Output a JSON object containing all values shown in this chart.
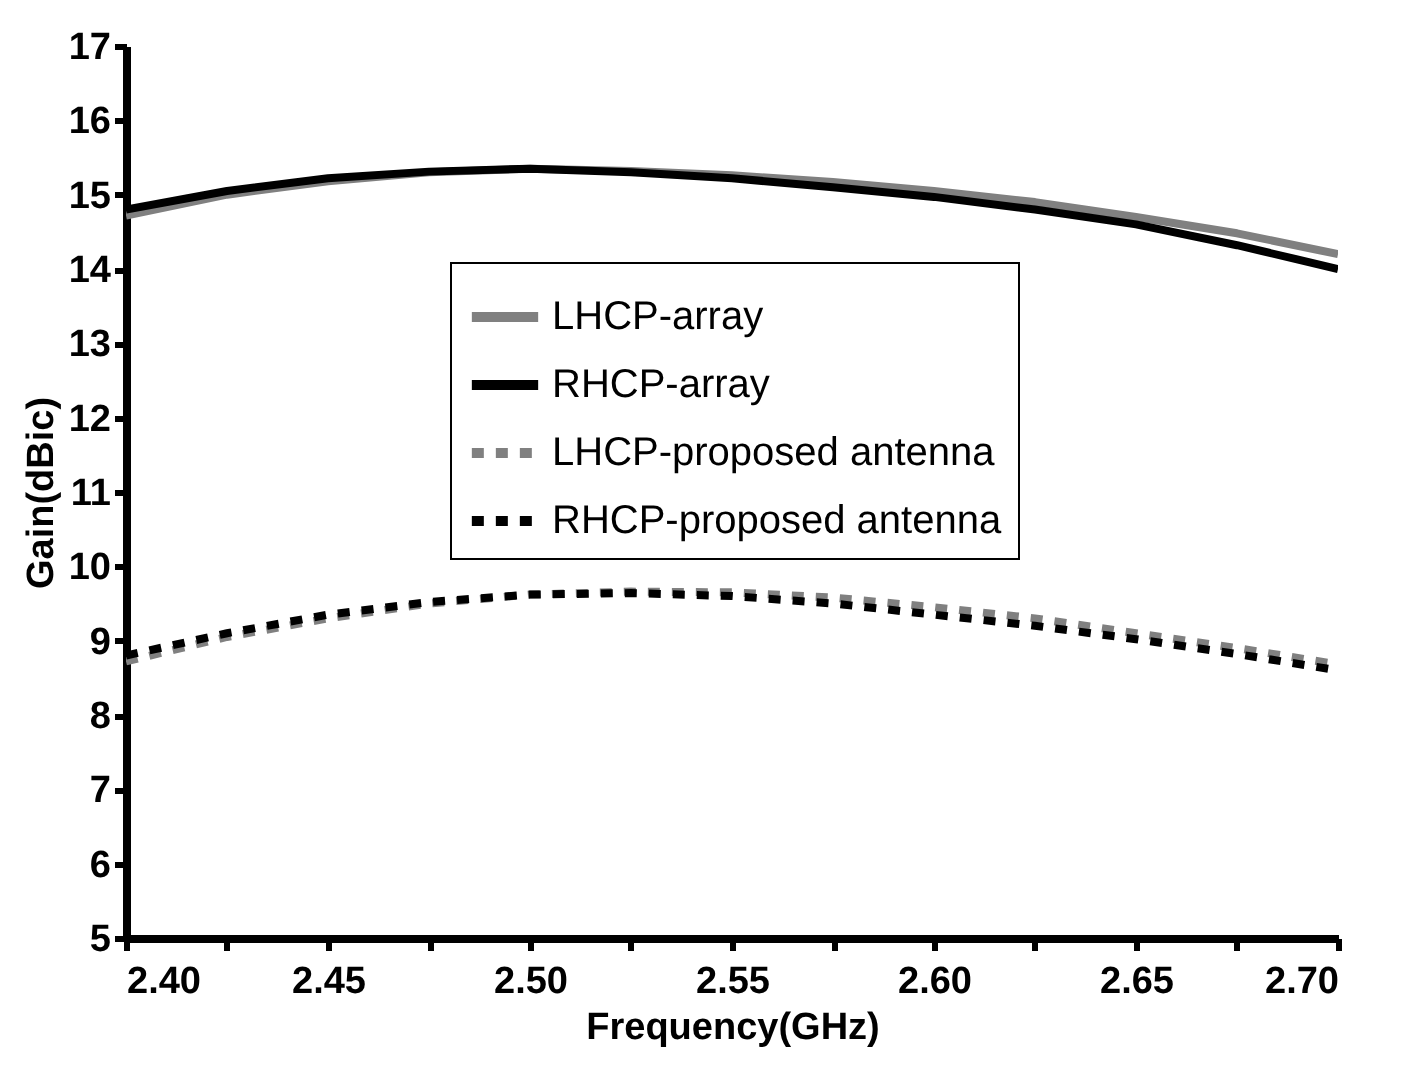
{
  "chart_data": {
    "type": "line",
    "xlabel": "Frequency(GHz)",
    "ylabel": "Gain(dBic)",
    "x": [
      2.4,
      2.425,
      2.45,
      2.475,
      2.5,
      2.525,
      2.55,
      2.575,
      2.6,
      2.625,
      2.65,
      2.675,
      2.7
    ],
    "series": [
      {
        "name": "LHCP-array",
        "color": "#808080",
        "line_style": "solid",
        "values": [
          14.72,
          15.0,
          15.18,
          15.3,
          15.35,
          15.32,
          15.26,
          15.17,
          15.05,
          14.9,
          14.7,
          14.48,
          14.2
        ]
      },
      {
        "name": "RHCP-array",
        "color": "#000000",
        "line_style": "solid",
        "values": [
          14.8,
          15.05,
          15.22,
          15.31,
          15.35,
          15.3,
          15.22,
          15.1,
          14.97,
          14.8,
          14.6,
          14.32,
          14.0
        ]
      },
      {
        "name": "LHCP-proposed antenna",
        "color": "#808080",
        "line_style": "dashed",
        "values": [
          8.72,
          9.05,
          9.3,
          9.5,
          9.62,
          9.66,
          9.65,
          9.58,
          9.45,
          9.3,
          9.1,
          8.9,
          8.68
        ]
      },
      {
        "name": "RHCP-proposed antenna",
        "color": "#000000",
        "line_style": "dashed",
        "values": [
          8.8,
          9.1,
          9.35,
          9.52,
          9.62,
          9.64,
          9.6,
          9.5,
          9.35,
          9.2,
          9.02,
          8.82,
          8.6
        ]
      }
    ],
    "xlim": [
      2.4,
      2.7
    ],
    "xticks": [
      {
        "value": 2.4,
        "label": "2.40"
      },
      {
        "value": 2.425,
        "label": null
      },
      {
        "value": 2.45,
        "label": "2.45"
      },
      {
        "value": 2.475,
        "label": null
      },
      {
        "value": 2.5,
        "label": "2.50"
      },
      {
        "value": 2.525,
        "label": null
      },
      {
        "value": 2.55,
        "label": "2.55"
      },
      {
        "value": 2.575,
        "label": null
      },
      {
        "value": 2.6,
        "label": "2.60"
      },
      {
        "value": 2.625,
        "label": null
      },
      {
        "value": 2.65,
        "label": "2.65"
      },
      {
        "value": 2.675,
        "label": null
      },
      {
        "value": 2.7,
        "label": "2.70"
      }
    ],
    "ylim": [
      5,
      17
    ],
    "yticks": [
      5,
      6,
      7,
      8,
      9,
      10,
      11,
      12,
      13,
      14,
      15,
      16,
      17
    ],
    "legend": "top right",
    "grid": false
  }
}
